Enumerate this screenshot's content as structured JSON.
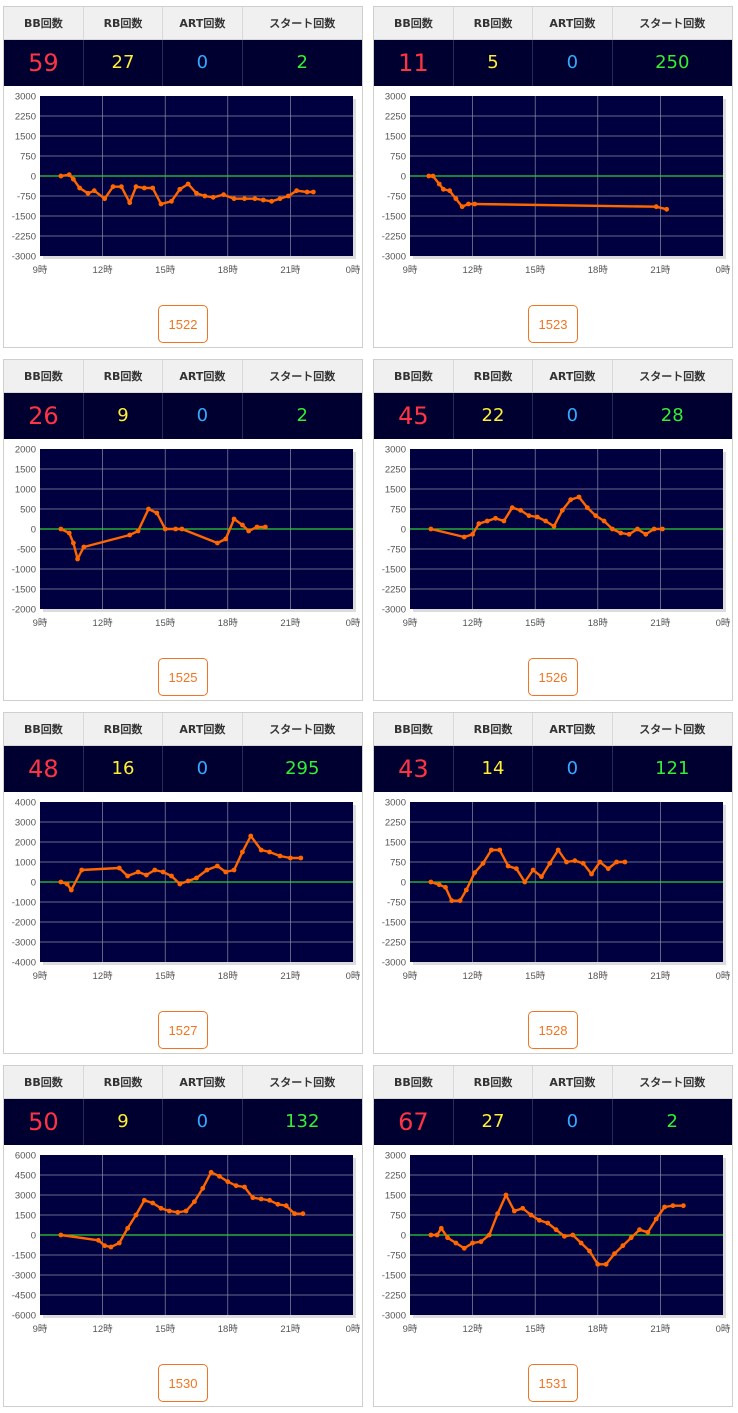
{
  "headers": {
    "bb": "BB回数",
    "rb": "RB回数",
    "art": "ART回数",
    "start": "スタート回数"
  },
  "colors": {
    "bb": "#ff3344",
    "rb": "#ffee33",
    "art": "#33aaff",
    "start": "#33ee33",
    "plot_bg": "#000040",
    "line": "#ff6600",
    "zero_line": "#2fcf2f",
    "button_accent": "#f07522"
  },
  "machines": [
    {
      "id": "1522",
      "bb": "59",
      "rb": "27",
      "art": "0",
      "start": "2",
      "chart_data": {
        "type": "line",
        "x_ticks": [
          "9時",
          "12時",
          "15時",
          "18時",
          "21時",
          "0時"
        ],
        "xlim": [
          9,
          24
        ],
        "ylim": [
          -3000,
          3000
        ],
        "y_ticks": [
          3000,
          2250,
          1500,
          750,
          0,
          -750,
          -1500,
          -2250,
          -3000
        ],
        "grid": true,
        "x": [
          10.0,
          10.4,
          10.6,
          10.9,
          11.3,
          11.6,
          12.1,
          12.5,
          12.9,
          13.3,
          13.6,
          14.0,
          14.4,
          14.8,
          15.3,
          15.7,
          16.1,
          16.5,
          16.9,
          17.3,
          17.8,
          18.3,
          18.8,
          19.3,
          19.7,
          20.1,
          20.5,
          20.9,
          21.3,
          21.8,
          22.1
        ],
        "y": [
          0,
          50,
          -120,
          -450,
          -650,
          -550,
          -850,
          -400,
          -400,
          -1000,
          -400,
          -450,
          -450,
          -1050,
          -950,
          -500,
          -300,
          -650,
          -750,
          -800,
          -700,
          -850,
          -850,
          -850,
          -900,
          -950,
          -850,
          -750,
          -550,
          -600,
          -600
        ]
      }
    },
    {
      "id": "1523",
      "bb": "11",
      "rb": "5",
      "art": "0",
      "start": "250",
      "chart_data": {
        "type": "line",
        "x_ticks": [
          "9時",
          "12時",
          "15時",
          "18時",
          "21時",
          "0時"
        ],
        "xlim": [
          9,
          24
        ],
        "ylim": [
          -3000,
          3000
        ],
        "y_ticks": [
          3000,
          2250,
          1500,
          750,
          0,
          -750,
          -1500,
          -2250,
          -3000
        ],
        "grid": true,
        "x": [
          9.9,
          10.1,
          10.4,
          10.6,
          10.9,
          11.2,
          11.5,
          11.8,
          12.1,
          20.8,
          21.3
        ],
        "y": [
          0,
          0,
          -300,
          -500,
          -550,
          -850,
          -1150,
          -1050,
          -1050,
          -1150,
          -1250
        ]
      }
    },
    {
      "id": "1525",
      "bb": "26",
      "rb": "9",
      "art": "0",
      "start": "2",
      "chart_data": {
        "type": "line",
        "x_ticks": [
          "9時",
          "12時",
          "15時",
          "18時",
          "21時",
          "0時"
        ],
        "xlim": [
          9,
          24
        ],
        "ylim": [
          -2000,
          2000
        ],
        "y_ticks": [
          2000,
          1500,
          1000,
          500,
          0,
          -500,
          -1000,
          -1500,
          -2000
        ],
        "grid": true,
        "x": [
          10.0,
          10.4,
          10.6,
          10.8,
          11.1,
          13.3,
          13.7,
          14.2,
          14.6,
          15.0,
          15.5,
          15.8,
          17.5,
          17.9,
          18.3,
          18.7,
          19.0,
          19.4,
          19.8
        ],
        "y": [
          0,
          -100,
          -350,
          -750,
          -450,
          -150,
          -50,
          500,
          400,
          0,
          0,
          0,
          -350,
          -250,
          250,
          100,
          -50,
          50,
          50
        ]
      }
    },
    {
      "id": "1526",
      "bb": "45",
      "rb": "22",
      "art": "0",
      "start": "28",
      "chart_data": {
        "type": "line",
        "x_ticks": [
          "9時",
          "12時",
          "15時",
          "18時",
          "21時",
          "0時"
        ],
        "xlim": [
          9,
          24
        ],
        "ylim": [
          -3000,
          3000
        ],
        "y_ticks": [
          3000,
          2250,
          1500,
          750,
          0,
          -750,
          -1500,
          -2250,
          -3000
        ],
        "grid": true,
        "x": [
          10.0,
          11.6,
          12.0,
          12.3,
          12.7,
          13.1,
          13.5,
          13.9,
          14.3,
          14.7,
          15.1,
          15.5,
          15.9,
          16.3,
          16.7,
          17.1,
          17.5,
          17.9,
          18.3,
          18.7,
          19.1,
          19.5,
          19.9,
          20.3,
          20.7,
          21.1
        ],
        "y": [
          0,
          -300,
          -200,
          200,
          300,
          400,
          300,
          800,
          700,
          500,
          450,
          300,
          100,
          700,
          1100,
          1200,
          800,
          500,
          300,
          0,
          -150,
          -200,
          0,
          -200,
          0,
          0
        ]
      }
    },
    {
      "id": "1527",
      "bb": "48",
      "rb": "16",
      "art": "0",
      "start": "295",
      "chart_data": {
        "type": "line",
        "x_ticks": [
          "9時",
          "12時",
          "15時",
          "18時",
          "21時",
          "0時"
        ],
        "xlim": [
          9,
          24
        ],
        "ylim": [
          -4000,
          4000
        ],
        "y_ticks": [
          4000,
          3000,
          2000,
          1000,
          0,
          -1000,
          -2000,
          -3000,
          -4000
        ],
        "grid": true,
        "x": [
          10.0,
          10.3,
          10.5,
          11.0,
          12.8,
          13.2,
          13.7,
          14.1,
          14.5,
          14.9,
          15.3,
          15.7,
          16.1,
          16.5,
          17.0,
          17.5,
          17.9,
          18.3,
          18.7,
          19.1,
          19.6,
          20.0,
          20.5,
          21.0,
          21.5
        ],
        "y": [
          0,
          -100,
          -400,
          600,
          700,
          300,
          500,
          350,
          600,
          500,
          300,
          -100,
          50,
          200,
          600,
          800,
          500,
          600,
          1500,
          2300,
          1600,
          1500,
          1300,
          1200,
          1200
        ]
      }
    },
    {
      "id": "1528",
      "bb": "43",
      "rb": "14",
      "art": "0",
      "start": "121",
      "chart_data": {
        "type": "line",
        "x_ticks": [
          "9時",
          "12時",
          "15時",
          "18時",
          "21時",
          "0時"
        ],
        "xlim": [
          9,
          24
        ],
        "ylim": [
          -3000,
          3000
        ],
        "y_ticks": [
          3000,
          2250,
          1500,
          750,
          0,
          -750,
          -1500,
          -2250,
          -3000
        ],
        "grid": true,
        "x": [
          10.0,
          10.4,
          10.7,
          11.0,
          11.4,
          11.7,
          12.1,
          12.5,
          12.9,
          13.3,
          13.7,
          14.1,
          14.5,
          14.9,
          15.3,
          15.7,
          16.1,
          16.5,
          16.9,
          17.3,
          17.7,
          18.1,
          18.5,
          18.9,
          19.3
        ],
        "y": [
          0,
          -100,
          -200,
          -700,
          -700,
          -300,
          350,
          700,
          1200,
          1200,
          600,
          500,
          0,
          450,
          200,
          700,
          1200,
          750,
          800,
          700,
          300,
          750,
          500,
          750,
          750
        ]
      }
    },
    {
      "id": "1530",
      "bb": "50",
      "rb": "9",
      "art": "0",
      "start": "132",
      "chart_data": {
        "type": "line",
        "x_ticks": [
          "9時",
          "12時",
          "15時",
          "18時",
          "21時",
          "0時"
        ],
        "xlim": [
          9,
          24
        ],
        "ylim": [
          -6000,
          6000
        ],
        "y_ticks": [
          6000,
          4500,
          3000,
          1500,
          0,
          -1500,
          -3000,
          -4500,
          -6000
        ],
        "grid": true,
        "x": [
          10.0,
          11.8,
          12.1,
          12.4,
          12.8,
          13.2,
          13.6,
          14.0,
          14.4,
          14.8,
          15.2,
          15.6,
          16.0,
          16.4,
          16.8,
          17.2,
          17.6,
          18.0,
          18.4,
          18.8,
          19.2,
          19.6,
          20.0,
          20.4,
          20.8,
          21.2,
          21.6
        ],
        "y": [
          0,
          -400,
          -800,
          -900,
          -600,
          500,
          1500,
          2600,
          2400,
          2000,
          1800,
          1700,
          1800,
          2500,
          3500,
          4700,
          4400,
          4000,
          3700,
          3600,
          2800,
          2700,
          2600,
          2300,
          2200,
          1600,
          1600
        ]
      }
    },
    {
      "id": "1531",
      "bb": "67",
      "rb": "27",
      "art": "0",
      "start": "2",
      "chart_data": {
        "type": "line",
        "x_ticks": [
          "9時",
          "12時",
          "15時",
          "18時",
          "21時",
          "0時"
        ],
        "xlim": [
          9,
          24
        ],
        "ylim": [
          -3000,
          3000
        ],
        "y_ticks": [
          3000,
          2250,
          1500,
          750,
          0,
          -750,
          -1500,
          -2250,
          -3000
        ],
        "grid": true,
        "x": [
          10.0,
          10.3,
          10.5,
          10.8,
          11.2,
          11.6,
          12.0,
          12.4,
          12.8,
          13.2,
          13.6,
          14.0,
          14.4,
          14.8,
          15.2,
          15.6,
          16.0,
          16.4,
          16.8,
          17.2,
          17.6,
          18.0,
          18.4,
          18.8,
          19.2,
          19.6,
          20.0,
          20.4,
          20.8,
          21.2,
          21.6,
          22.1
        ],
        "y": [
          0,
          0,
          250,
          -100,
          -300,
          -500,
          -300,
          -250,
          0,
          800,
          1500,
          900,
          1000,
          750,
          550,
          450,
          200,
          -50,
          0,
          -300,
          -600,
          -1100,
          -1100,
          -700,
          -400,
          -100,
          200,
          100,
          600,
          1050,
          1100,
          1100
        ]
      }
    }
  ]
}
